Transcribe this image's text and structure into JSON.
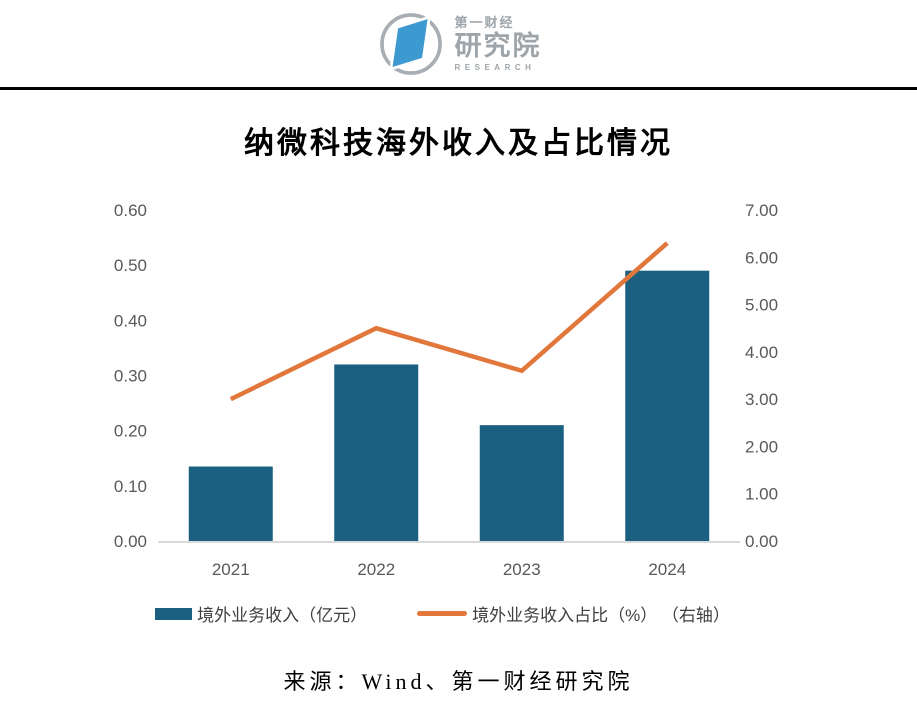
{
  "header": {
    "logo": {
      "cn_small": "第一财经",
      "cn_large": "研究院",
      "en": "RESEARCH",
      "ring_color": "#A8AEB3",
      "mark_color": "#3D9AD1",
      "text_color": "#9EA5AA"
    }
  },
  "title": "纳微科技海外收入及占比情况",
  "legend": [
    {
      "label": "境外业务收入（亿元）",
      "type": "bar",
      "color": "#1B6080"
    },
    {
      "label": "境外业务收入占比（%） （右轴）",
      "type": "line",
      "color": "#E2773C"
    }
  ],
  "source": "来源：Wind、第一财经研究院",
  "colors": {
    "bar": "#1B6080",
    "line": "#E2773C",
    "axis_labels": "#595959",
    "axis_line": "#D9D9D9",
    "divider": "#000000"
  },
  "chart_data": {
    "type": "bar",
    "subtype": "combo-bar-line",
    "title": "纳微科技海外收入及占比情况",
    "categories": [
      "2021",
      "2022",
      "2023",
      "2024"
    ],
    "series": [
      {
        "name": "境外业务收入（亿元）",
        "type": "bar",
        "axis": "left",
        "values": [
          0.135,
          0.32,
          0.21,
          0.49
        ],
        "color": "#1B6080"
      },
      {
        "name": "境外业务收入占比（%）（右轴）",
        "type": "line",
        "axis": "right",
        "values": [
          3.0,
          4.5,
          3.6,
          6.3
        ],
        "color": "#E2773C"
      }
    ],
    "left_axis": {
      "min": 0,
      "max": 0.6,
      "step": 0.1,
      "format": "0.00"
    },
    "right_axis": {
      "min": 0,
      "max": 7,
      "step": 1,
      "format": "0.00"
    },
    "grid": false,
    "legend_position": "bottom",
    "xlabel": "",
    "ylabel": ""
  }
}
